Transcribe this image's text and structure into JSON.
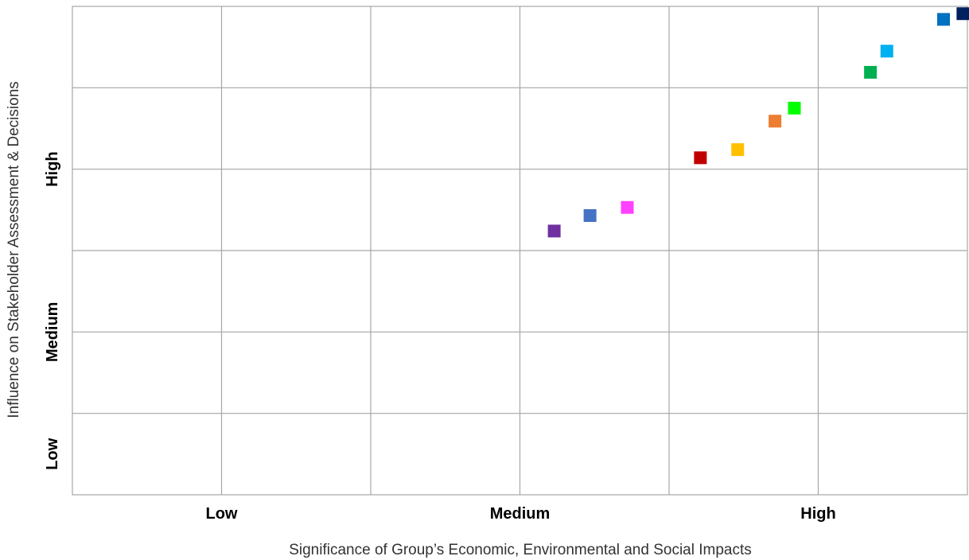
{
  "chart_data": {
    "type": "scatter",
    "title": "",
    "xlabel": "Significance of Group’s Economic, Environmental and Social Impacts",
    "ylabel": "Influence on Stakeholder Assessment & Decisions",
    "x_tick_labels": [
      "Low",
      "Medium",
      "High"
    ],
    "y_tick_labels": [
      "Low",
      "Medium",
      "High"
    ],
    "xlim": [
      0,
      6
    ],
    "ylim": [
      0,
      6
    ],
    "grid": true,
    "legend": "none",
    "marker": "square",
    "points": [
      {
        "x": 3.23,
        "y": 3.24,
        "color": "#7030A0"
      },
      {
        "x": 3.47,
        "y": 3.43,
        "color": "#4472C4"
      },
      {
        "x": 3.72,
        "y": 3.53,
        "color": "#FF40FF"
      },
      {
        "x": 4.21,
        "y": 4.14,
        "color": "#C00000"
      },
      {
        "x": 4.46,
        "y": 4.24,
        "color": "#FFC000"
      },
      {
        "x": 4.71,
        "y": 4.59,
        "color": "#ED7D31"
      },
      {
        "x": 4.84,
        "y": 4.75,
        "color": "#00FF00"
      },
      {
        "x": 5.35,
        "y": 5.19,
        "color": "#00B050"
      },
      {
        "x": 5.46,
        "y": 5.45,
        "color": "#00B0F0"
      },
      {
        "x": 5.84,
        "y": 5.84,
        "color": "#0070C0"
      },
      {
        "x": 5.97,
        "y": 5.91,
        "color": "#002060"
      }
    ]
  }
}
